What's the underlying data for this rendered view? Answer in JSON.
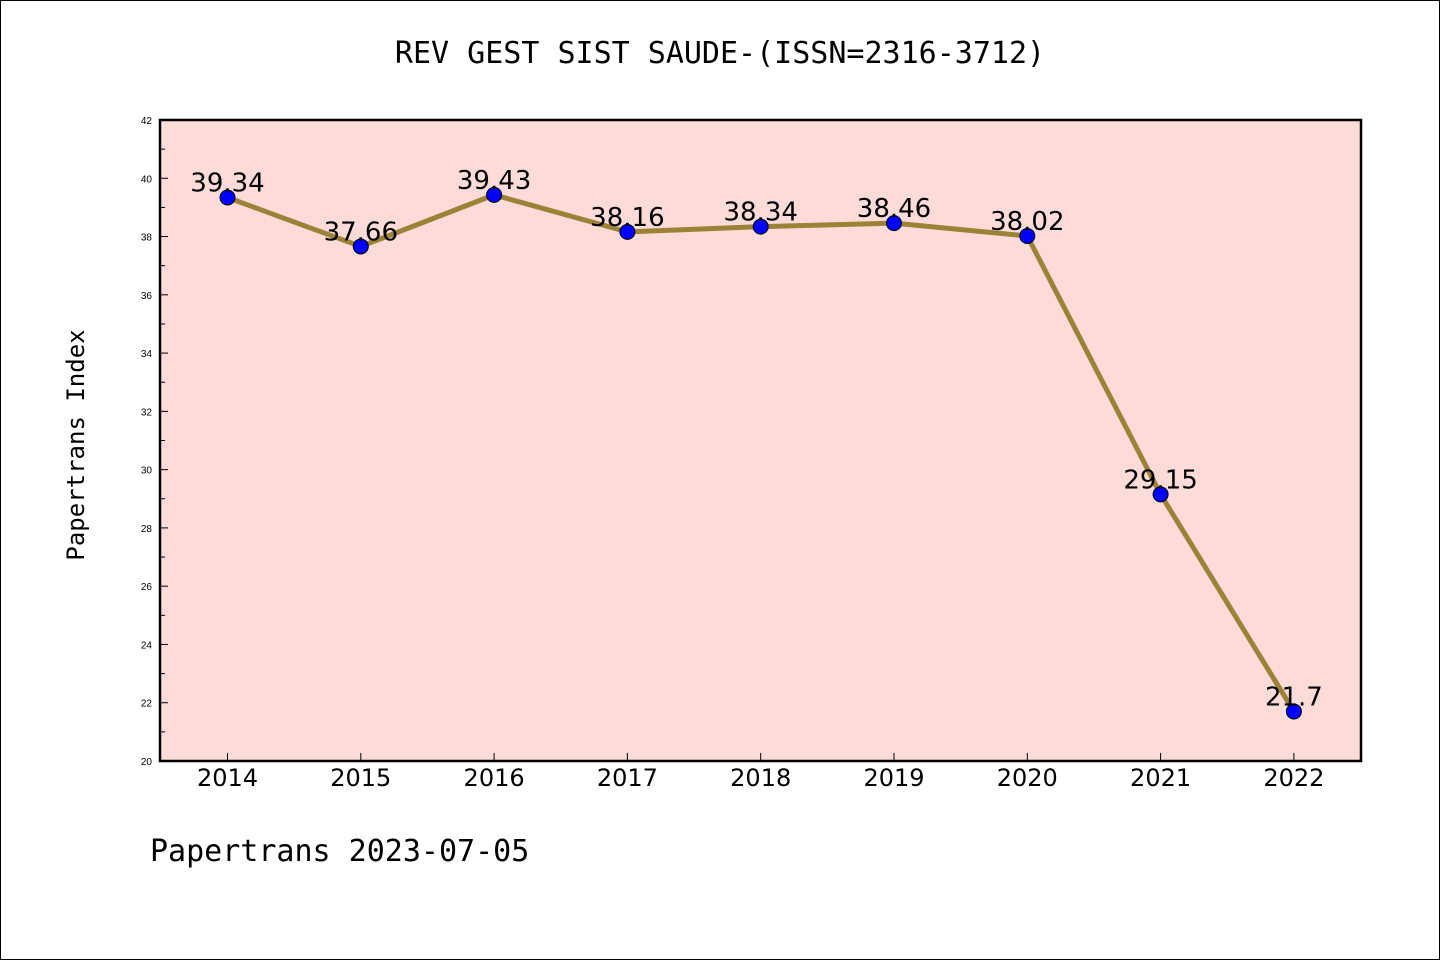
{
  "chart_data": {
    "type": "line",
    "title": "REV GEST SIST SAUDE-(ISSN=2316-3712)",
    "xlabel": "",
    "ylabel": "Papertrans Index",
    "footer": "Papertrans 2023-07-05",
    "x": [
      "2014",
      "2015",
      "2016",
      "2017",
      "2018",
      "2019",
      "2020",
      "2021",
      "2022"
    ],
    "series": [
      {
        "values": [
          39.34,
          37.66,
          39.43,
          38.16,
          38.34,
          38.46,
          38.02,
          29.15,
          21.7
        ],
        "labels": [
          "39.34",
          "37.66",
          "39.43",
          "38.16",
          "38.34",
          "38.46",
          "38.02",
          "29.15",
          "21.7"
        ]
      }
    ],
    "ylim": [
      20,
      42
    ],
    "yticks": [
      "20",
      "22",
      "24",
      "26",
      "28",
      "30",
      "32",
      "34",
      "36",
      "38",
      "40",
      "42"
    ],
    "grid": false,
    "colors": {
      "plot_background": "#fddbd8",
      "line": "#9b8236",
      "marker": "#0000ff"
    }
  }
}
